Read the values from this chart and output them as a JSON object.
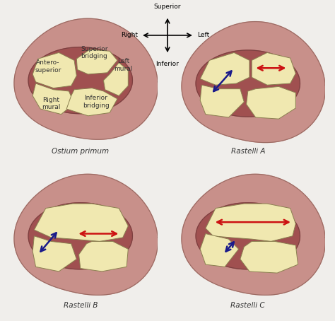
{
  "background_color": "#f0eeeb",
  "heart_outer_color": "#c8908a",
  "heart_border_color": "#9a6a62",
  "heart_inner_color": "#b87878",
  "heart_inner_border": "#9a6060",
  "valve_bg_color": "#a05050",
  "valve_leaflet_color": "#f0e8b0",
  "valve_leaflet_edge": "#8a8050",
  "text_color": "#333333",
  "arrow_red": "#cc1111",
  "arrow_blue": "#1a1a8a",
  "titles": [
    "Ostium primum",
    "Rastelli A",
    "Rastelli B",
    "Rastelli C"
  ]
}
